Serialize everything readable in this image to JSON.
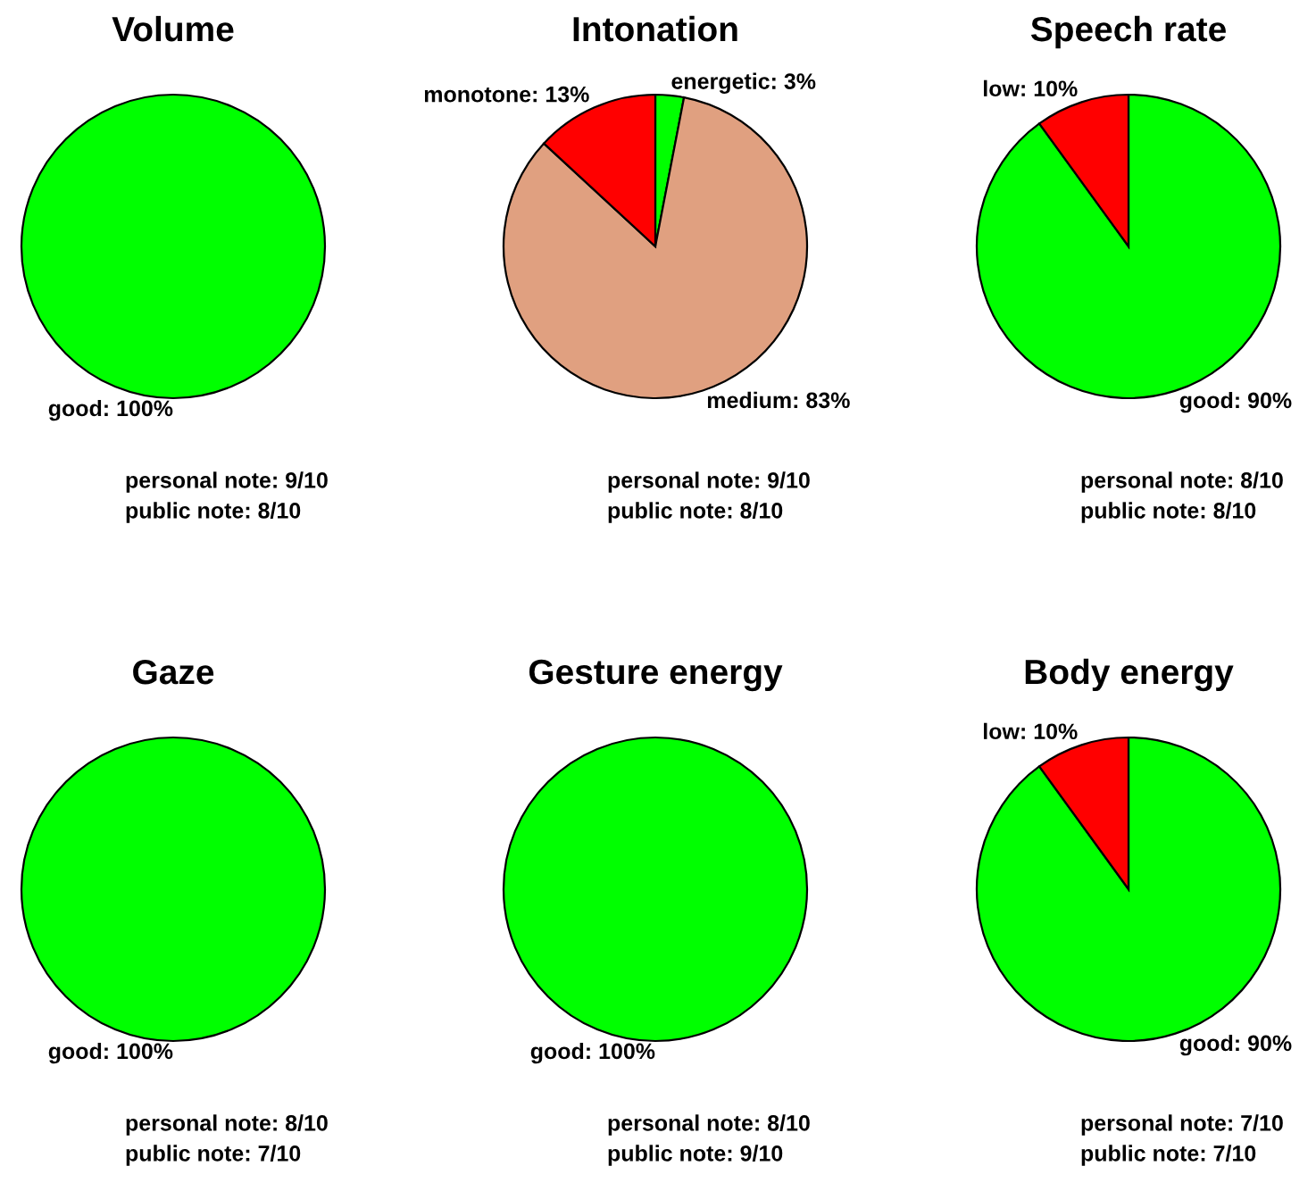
{
  "chart_data": [
    {
      "type": "pie",
      "title": "Volume",
      "categories": [
        "good"
      ],
      "values": [
        100
      ],
      "colors": [
        "#00ff00"
      ],
      "value_labels": [
        "100%"
      ],
      "annotations": [
        "personal note: 9/10",
        "public note: 8/10"
      ]
    },
    {
      "type": "pie",
      "title": "Intonation",
      "categories": [
        "energetic",
        "medium",
        "monotone"
      ],
      "values": [
        3,
        83,
        13
      ],
      "colors": [
        "#00ff00",
        "#e0a080",
        "#ff0000"
      ],
      "value_labels": [
        "3%",
        "83%",
        "13%"
      ],
      "annotations": [
        "personal note: 9/10",
        "public note: 8/10"
      ]
    },
    {
      "type": "pie",
      "title": "Speech rate",
      "categories": [
        "good",
        "low"
      ],
      "values": [
        90,
        10
      ],
      "colors": [
        "#00ff00",
        "#ff0000"
      ],
      "value_labels": [
        "90%",
        "10%"
      ],
      "annotations": [
        "personal note: 8/10",
        "public note: 8/10"
      ]
    },
    {
      "type": "pie",
      "title": "Gaze",
      "categories": [
        "good"
      ],
      "values": [
        100
      ],
      "colors": [
        "#00ff00"
      ],
      "value_labels": [
        "100%"
      ],
      "annotations": [
        "personal note: 8/10",
        "public note: 7/10"
      ]
    },
    {
      "type": "pie",
      "title": "Gesture energy",
      "categories": [
        "good"
      ],
      "values": [
        100
      ],
      "colors": [
        "#00ff00"
      ],
      "value_labels": [
        "100%"
      ],
      "annotations": [
        "personal note: 8/10",
        "public note: 9/10"
      ]
    },
    {
      "type": "pie",
      "title": "Body energy",
      "categories": [
        "good",
        "low"
      ],
      "values": [
        90,
        10
      ],
      "colors": [
        "#00ff00",
        "#ff0000"
      ],
      "value_labels": [
        "90%",
        "10%"
      ],
      "annotations": [
        "personal note: 7/10",
        "public note: 7/10"
      ]
    }
  ]
}
